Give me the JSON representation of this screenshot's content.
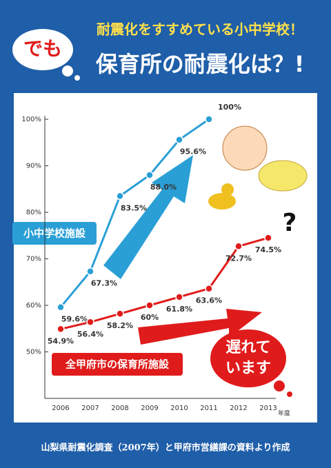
{
  "header": {
    "lead": "でも",
    "line1": "耐震化をすすめている小中学校！",
    "line2": "保育所の耐震化は？!"
  },
  "chart_data": {
    "type": "line",
    "categories": [
      "2006",
      "2007",
      "2008",
      "2009",
      "2010",
      "2011",
      "2012",
      "2013"
    ],
    "x_label": "年度",
    "series": [
      {
        "name": "小中学校施設",
        "color": "#2a9fd6",
        "values": [
          59.6,
          67.3,
          83.5,
          88.0,
          95.6,
          100,
          null,
          null
        ],
        "value_labels": [
          "59.6%",
          "67.3%",
          "83.5%",
          "88.0%",
          "95.6%",
          "100%",
          null,
          null
        ]
      },
      {
        "name": "全甲府市の保育所施設",
        "color": "#e01b1b",
        "values": [
          54.9,
          56.4,
          58.2,
          60,
          61.8,
          63.6,
          72.7,
          74.5
        ],
        "value_labels": [
          "54.9%",
          "56.4%",
          "58.2%",
          "60%",
          "61.8%",
          "63.6%",
          "72.7%",
          "74.5%"
        ]
      }
    ],
    "ylim": [
      40,
      100
    ],
    "yticks": [
      {
        "value": 50,
        "label": "50%"
      },
      {
        "value": 60,
        "label": "60%"
      },
      {
        "value": 70,
        "label": "70%"
      },
      {
        "value": 80,
        "label": "80%"
      },
      {
        "value": 90,
        "label": "90%"
      },
      {
        "value": 100,
        "label": "100%"
      }
    ],
    "grid": false
  },
  "annotations": {
    "question": "?",
    "callout_line1": "遅れて",
    "callout_line2": "います"
  },
  "footer": "山梨県耐震化調査（2007年）と甲府市営繕課の資料より作成"
}
